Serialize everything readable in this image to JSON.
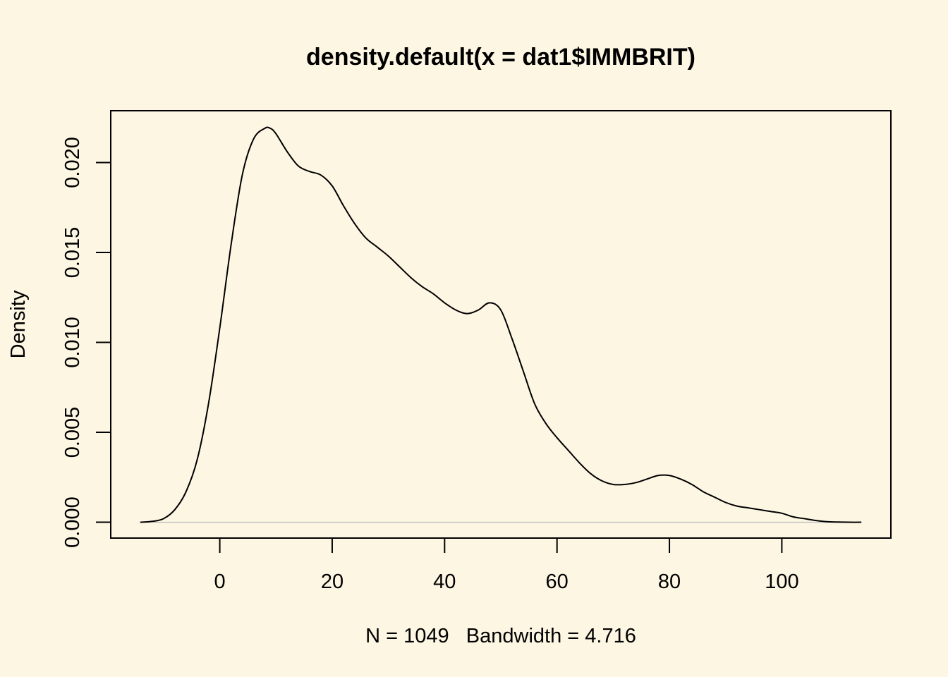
{
  "colors": {
    "background": "#FDF6E3",
    "line": "#000000",
    "zero_line": "#BEBEBE"
  },
  "chart_data": {
    "type": "line",
    "title": "density.default(x = dat1$IMMBRIT)",
    "xlabel": "N = 1049   Bandwidth = 4.716",
    "ylabel": "Density",
    "xlim": [
      -19.4,
      119.4
    ],
    "ylim": [
      -0.00088,
      0.02288
    ],
    "x_ticks": [
      0,
      20,
      40,
      60,
      80,
      100
    ],
    "x_tick_labels": [
      "0",
      "20",
      "40",
      "60",
      "80",
      "100"
    ],
    "y_ticks": [
      0.0,
      0.005,
      0.01,
      0.015,
      0.02
    ],
    "y_tick_labels": [
      "0.000",
      "0.005",
      "0.010",
      "0.015",
      "0.020"
    ],
    "grid": false,
    "zero_line": true,
    "series": [
      {
        "x": [
          -14.15,
          -12,
          -10,
          -8,
          -6,
          -4,
          -2,
          0,
          2,
          4,
          6,
          8,
          9,
          10,
          12,
          14,
          16,
          18,
          20,
          22,
          24,
          26,
          28,
          30,
          32,
          34,
          36,
          38,
          40,
          42,
          44,
          46,
          48,
          50,
          52,
          54,
          56,
          58,
          60,
          62,
          64,
          66,
          68,
          70,
          72,
          74,
          76,
          78,
          80,
          82,
          84,
          86,
          88,
          90,
          92,
          94,
          96,
          98,
          100,
          102,
          104,
          106,
          108,
          110,
          112,
          114.15
        ],
        "y": [
          0.0,
          5e-05,
          0.0002,
          0.0007,
          0.0017,
          0.0035,
          0.0066,
          0.0108,
          0.0154,
          0.0193,
          0.0213,
          0.0219,
          0.0219,
          0.0216,
          0.0206,
          0.0198,
          0.0195,
          0.0193,
          0.0187,
          0.0176,
          0.0166,
          0.0158,
          0.0153,
          0.0148,
          0.0142,
          0.0136,
          0.0131,
          0.0127,
          0.0122,
          0.0118,
          0.0116,
          0.0118,
          0.0122,
          0.0118,
          0.0102,
          0.0084,
          0.0066,
          0.0055,
          0.0047,
          0.004,
          0.0033,
          0.0027,
          0.0023,
          0.0021,
          0.0021,
          0.0022,
          0.0024,
          0.0026,
          0.0026,
          0.0024,
          0.0021,
          0.0017,
          0.0014,
          0.0011,
          0.0009,
          0.0008,
          0.0007,
          0.0006,
          0.0005,
          0.0003,
          0.0002,
          0.0001,
          3e-05,
          1e-05,
          0.0,
          0.0
        ]
      }
    ]
  }
}
